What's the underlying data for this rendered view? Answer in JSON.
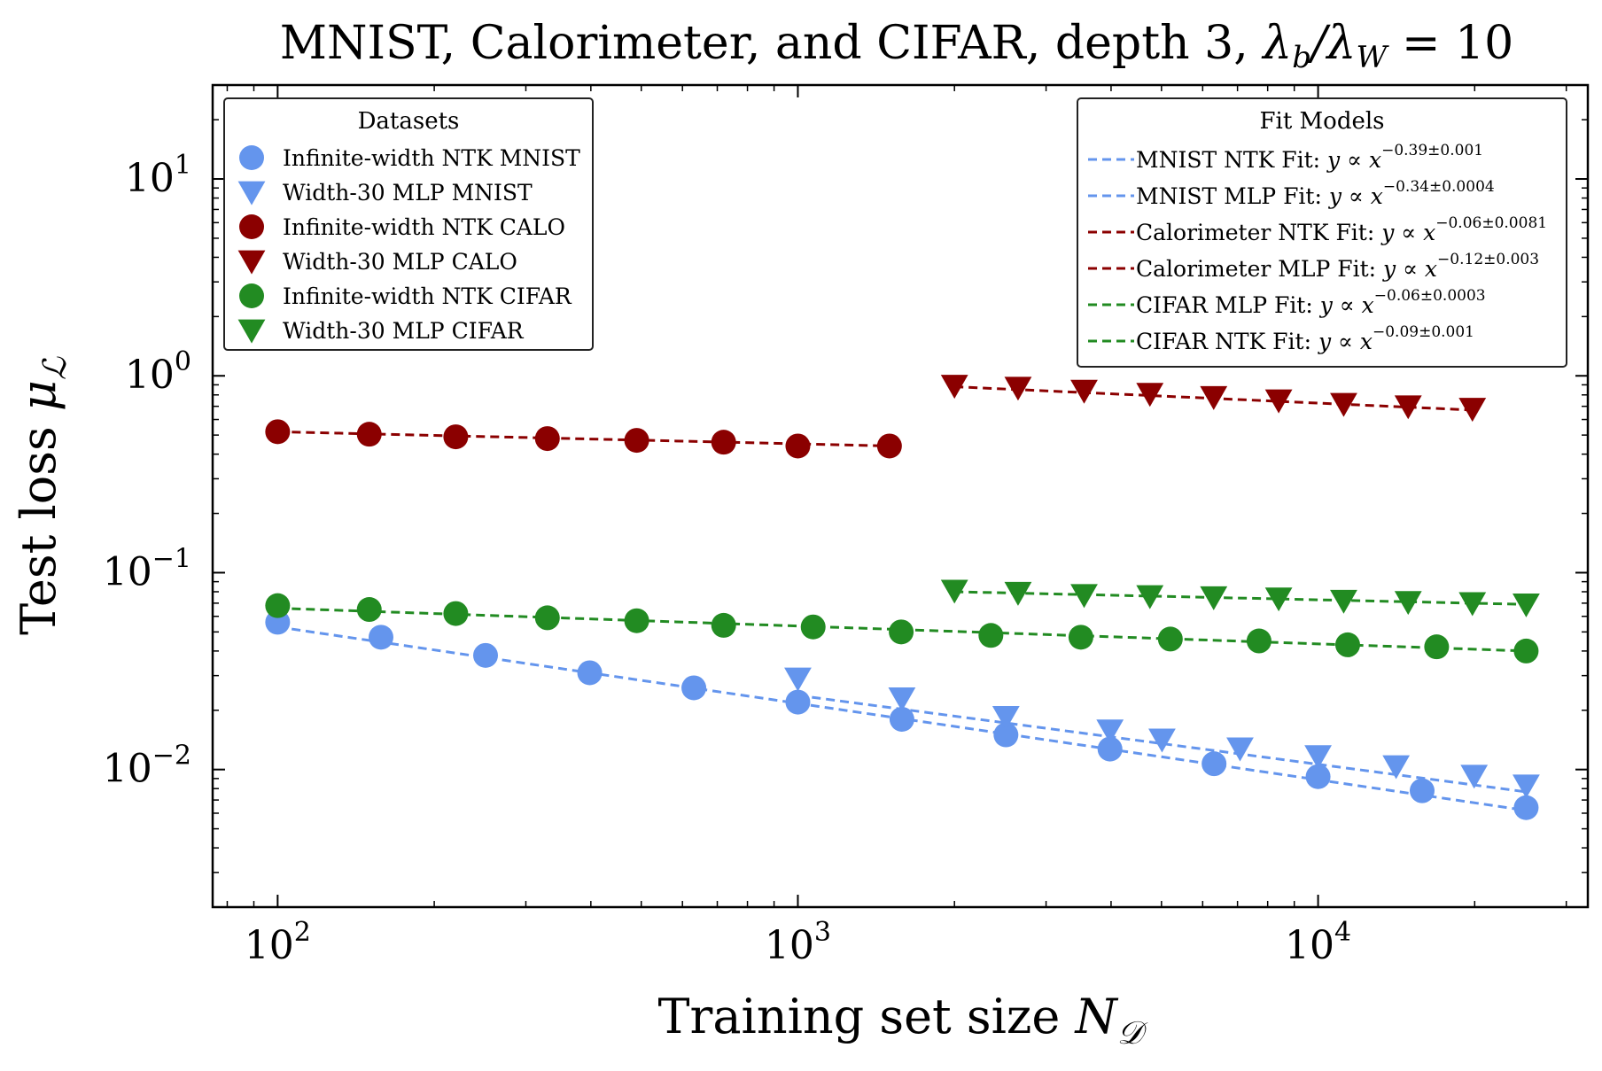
{
  "chart_data": {
    "type": "scatter",
    "title": "MNIST, Calorimeter, and CIFAR, depth 3, λ_b/λ_W = 10",
    "xlabel": "Training set size N_𝒟",
    "ylabel": "Test loss μ_ℒ",
    "x_scale": "log",
    "y_scale": "log",
    "xlim": [
      75,
      33000
    ],
    "ylim": [
      0.002,
      30
    ],
    "x_ticks": [
      {
        "value": 100,
        "base": "10",
        "exp": "2"
      },
      {
        "value": 1000,
        "base": "10",
        "exp": "3"
      },
      {
        "value": 10000,
        "base": "10",
        "exp": "4"
      }
    ],
    "y_ticks": [
      {
        "value": 0.01,
        "base": "10",
        "exp": "−2"
      },
      {
        "value": 0.1,
        "base": "10",
        "exp": "−1"
      },
      {
        "value": 1,
        "base": "10",
        "exp": "0"
      },
      {
        "value": 10,
        "base": "10",
        "exp": "1"
      }
    ],
    "colors": {
      "mnist": "#6495ED",
      "calo": "#8B0000",
      "cifar": "#228B22"
    },
    "datasets_legend": {
      "title": "Datasets",
      "placement": "upper-left",
      "entries": [
        {
          "label": "Infinite-width NTK MNIST",
          "marker": "circle",
          "color": "#6495ED"
        },
        {
          "label": "Width-30 MLP MNIST",
          "marker": "triangle-down",
          "color": "#6495ED"
        },
        {
          "label": "Infinite-width NTK CALO",
          "marker": "circle",
          "color": "#8B0000"
        },
        {
          "label": "Width-30 MLP CALO",
          "marker": "triangle-down",
          "color": "#8B0000"
        },
        {
          "label": "Infinite-width NTK CIFAR",
          "marker": "circle",
          "color": "#228B22"
        },
        {
          "label": "Width-30 MLP CIFAR",
          "marker": "triangle-down",
          "color": "#228B22"
        }
      ]
    },
    "fits_legend": {
      "title": "Fit Models",
      "placement": "upper-right",
      "entries": [
        {
          "label": "MNIST NTK Fit: ",
          "formula": "y ∝ x",
          "exp": "−0.39±0.001",
          "color": "#6495ED"
        },
        {
          "label": "MNIST MLP Fit: ",
          "formula": "y ∝ x",
          "exp": "−0.34±0.0004",
          "color": "#6495ED"
        },
        {
          "label": "Calorimeter NTK Fit: ",
          "formula": "y ∝ x",
          "exp": "−0.06±0.0081",
          "color": "#8B0000"
        },
        {
          "label": "Calorimeter MLP Fit: ",
          "formula": "y ∝ x",
          "exp": "−0.12±0.003",
          "color": "#8B0000"
        },
        {
          "label": "CIFAR MLP Fit: ",
          "formula": "y ∝ x",
          "exp": "−0.06±0.0003",
          "color": "#228B22"
        },
        {
          "label": "CIFAR NTK Fit: ",
          "formula": "y ∝ x",
          "exp": "−0.09±0.001",
          "color": "#228B22"
        }
      ]
    },
    "series": [
      {
        "name": "Infinite-width NTK MNIST",
        "marker": "circle",
        "color": "#6495ED",
        "x": [
          100,
          158,
          251,
          398,
          631,
          1000,
          1585,
          2512,
          3981,
          6310,
          10000,
          15849,
          25119
        ],
        "y": [
          0.056,
          0.047,
          0.038,
          0.031,
          0.026,
          0.022,
          0.018,
          0.015,
          0.0127,
          0.0107,
          0.0092,
          0.0078,
          0.0064
        ]
      },
      {
        "name": "Width-30 MLP MNIST",
        "marker": "triangle-down",
        "color": "#6495ED",
        "x": [
          1000,
          1585,
          2512,
          3981,
          5012,
          7079,
          10000,
          14125,
          19953,
          25119
        ],
        "y": [
          0.029,
          0.023,
          0.0185,
          0.0158,
          0.0142,
          0.0128,
          0.0117,
          0.0104,
          0.0093,
          0.0083
        ]
      },
      {
        "name": "Infinite-width NTK CALO",
        "marker": "circle",
        "color": "#8B0000",
        "x": [
          100,
          150,
          220,
          330,
          490,
          720,
          1000,
          1500
        ],
        "y": [
          0.52,
          0.505,
          0.49,
          0.48,
          0.47,
          0.46,
          0.44,
          0.44
        ]
      },
      {
        "name": "Width-30 MLP CALO",
        "marker": "triangle-down",
        "color": "#8B0000",
        "x": [
          2000,
          2650,
          3550,
          4750,
          6300,
          8400,
          11200,
          14900,
          19800
        ],
        "y": [
          0.89,
          0.87,
          0.84,
          0.81,
          0.78,
          0.75,
          0.72,
          0.7,
          0.68
        ]
      },
      {
        "name": "Infinite-width NTK CIFAR",
        "marker": "circle",
        "color": "#228B22",
        "x": [
          100,
          150,
          220,
          330,
          490,
          720,
          1070,
          1580,
          2350,
          3500,
          5200,
          7700,
          11400,
          16900,
          25119
        ],
        "y": [
          0.068,
          0.065,
          0.062,
          0.059,
          0.057,
          0.054,
          0.053,
          0.05,
          0.048,
          0.047,
          0.046,
          0.045,
          0.043,
          0.042,
          0.04
        ]
      },
      {
        "name": "Width-30 MLP CIFAR",
        "marker": "triangle-down",
        "color": "#228B22",
        "x": [
          2000,
          2650,
          3550,
          4750,
          6300,
          8400,
          11200,
          14900,
          19800,
          25119
        ],
        "y": [
          0.081,
          0.079,
          0.077,
          0.076,
          0.075,
          0.074,
          0.072,
          0.071,
          0.07,
          0.069
        ]
      }
    ],
    "fits": [
      {
        "color": "#6495ED",
        "x": [
          100,
          25119
        ],
        "y": [
          0.053,
          0.0062
        ]
      },
      {
        "color": "#6495ED",
        "x": [
          1000,
          25119
        ],
        "y": [
          0.0238,
          0.0077
        ]
      },
      {
        "color": "#8B0000",
        "x": [
          100,
          1500
        ],
        "y": [
          0.52,
          0.44
        ]
      },
      {
        "color": "#8B0000",
        "x": [
          2000,
          19800
        ],
        "y": [
          0.88,
          0.67
        ]
      },
      {
        "color": "#228B22",
        "x": [
          2000,
          25119
        ],
        "y": [
          0.08,
          0.069
        ]
      },
      {
        "color": "#228B22",
        "x": [
          100,
          25119
        ],
        "y": [
          0.066,
          0.04
        ]
      }
    ]
  }
}
